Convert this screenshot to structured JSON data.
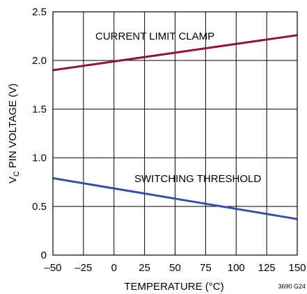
{
  "chart_data": {
    "type": "line",
    "xlabel": "TEMPERATURE (°C)",
    "ylabel_main": "V",
    "ylabel_sub": "C",
    "ylabel_rest": " PIN VOLTAGE (V)",
    "xlim": [
      -50,
      150
    ],
    "ylim": [
      0,
      2.5
    ],
    "x_ticks": [
      -50,
      -25,
      0,
      25,
      50,
      75,
      100,
      125,
      150
    ],
    "x_tick_labels": [
      "–50",
      "–25",
      "0",
      "25",
      "50",
      "75",
      "100",
      "125",
      "150"
    ],
    "y_ticks": [
      0,
      0.5,
      1.0,
      1.5,
      2.0,
      2.5
    ],
    "y_tick_labels": [
      "0",
      "0.5",
      "1.0",
      "1.5",
      "2.0",
      "2.5"
    ],
    "grid": true,
    "series": [
      {
        "name": "CURRENT LIMIT CLAMP",
        "color": "#8b1a3a",
        "x": [
          -50,
          150
        ],
        "y": [
          1.9,
          2.26
        ]
      },
      {
        "name": "SWITCHING THRESHOLD",
        "color": "#3a4f9e",
        "x": [
          -50,
          150
        ],
        "y": [
          0.79,
          0.37
        ]
      }
    ],
    "figure_number": "3690 G24"
  }
}
